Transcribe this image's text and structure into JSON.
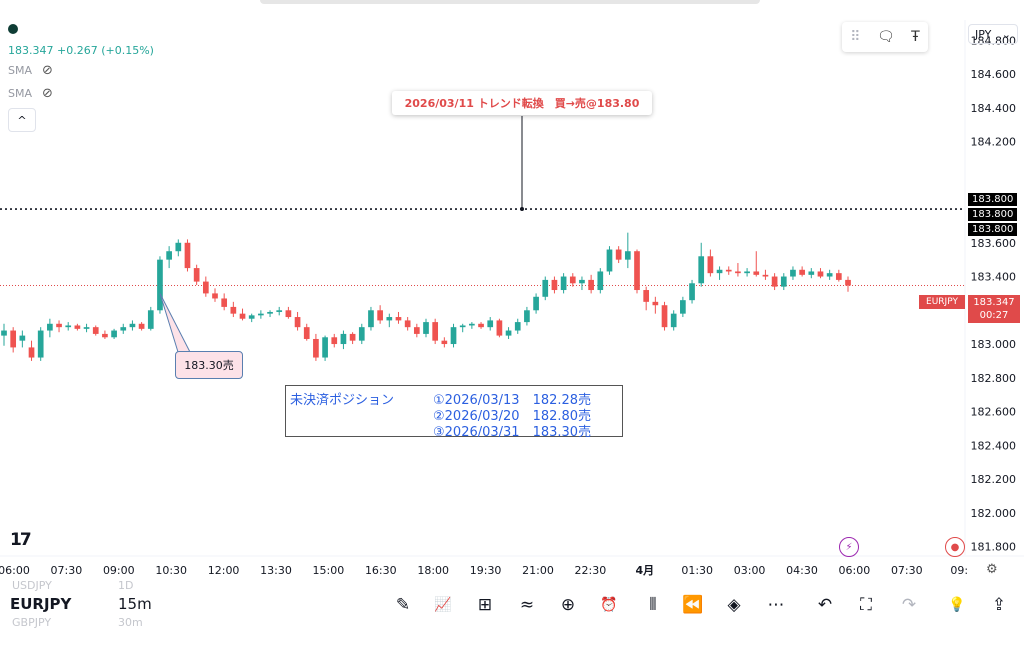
{
  "legend": {
    "price": "183.347 +0.267 (+0.15%)",
    "indicators": [
      {
        "name": "SMA",
        "icon": "eye-hidden-icon"
      },
      {
        "name": "SMA",
        "icon": "eye-hidden-icon"
      }
    ],
    "collapse_icon": "^"
  },
  "currency_selector": {
    "value": "JPY",
    "arrow": "⌄"
  },
  "price_tags": [
    "183.800",
    "183.800",
    "183.800"
  ],
  "current_price": {
    "symbol": "EURJPY",
    "value": "183.347",
    "countdown": "00:27"
  },
  "annotations": {
    "trend_change": "2026/03/11 トレンド転換　買→売@183.80",
    "sell_entry": "183.30売",
    "positions": {
      "title": "未決済ポジション",
      "lines": [
        "①2026/03/13　182.28売",
        "②2026/03/20　182.80売",
        "③2026/03/31　183.30売"
      ]
    }
  },
  "chart_data": {
    "type": "candlestick",
    "symbol": "EURJPY",
    "interval": "15m",
    "y_ticks": [
      "184.800",
      "184.600",
      "184.400",
      "184.200",
      "183.600",
      "183.400",
      "183.200",
      "183.000",
      "182.800",
      "182.600",
      "182.400",
      "182.200",
      "182.000",
      "181.800"
    ],
    "ylim": [
      181.75,
      184.92
    ],
    "x_ticks": [
      "06:00",
      "07:30",
      "09:00",
      "10:30",
      "12:00",
      "13:30",
      "15:00",
      "16:30",
      "18:00",
      "19:30",
      "21:00",
      "22:30",
      "4月",
      "01:30",
      "03:00",
      "04:30",
      "06:00",
      "07:30",
      "09:"
    ],
    "horizontal_line": 183.8,
    "current_price_line": 183.347,
    "ohlc": [
      [
        183.05,
        183.12,
        182.99,
        183.08
      ],
      [
        183.08,
        183.1,
        182.95,
        182.98
      ],
      [
        183.02,
        183.08,
        182.98,
        183.05
      ],
      [
        182.98,
        183.02,
        182.9,
        182.92
      ],
      [
        182.92,
        183.1,
        182.9,
        183.08
      ],
      [
        183.08,
        183.15,
        183.04,
        183.12
      ],
      [
        183.12,
        183.14,
        183.07,
        183.1
      ],
      [
        183.1,
        183.13,
        183.08,
        183.11
      ],
      [
        183.11,
        183.12,
        183.08,
        183.09
      ],
      [
        183.09,
        183.12,
        183.07,
        183.1
      ],
      [
        183.1,
        183.11,
        183.05,
        183.06
      ],
      [
        183.06,
        183.08,
        183.03,
        183.04
      ],
      [
        183.04,
        183.09,
        183.03,
        183.08
      ],
      [
        183.08,
        183.12,
        183.06,
        183.1
      ],
      [
        183.1,
        183.14,
        183.08,
        183.12
      ],
      [
        183.12,
        183.13,
        183.08,
        183.09
      ],
      [
        183.09,
        183.22,
        183.08,
        183.2
      ],
      [
        183.2,
        183.52,
        183.18,
        183.5
      ],
      [
        183.5,
        183.58,
        183.45,
        183.55
      ],
      [
        183.55,
        183.62,
        183.52,
        183.6
      ],
      [
        183.6,
        183.62,
        183.43,
        183.45
      ],
      [
        183.45,
        183.47,
        183.35,
        183.37
      ],
      [
        183.37,
        183.4,
        183.28,
        183.3
      ],
      [
        183.3,
        183.33,
        183.25,
        183.27
      ],
      [
        183.27,
        183.3,
        183.2,
        183.22
      ],
      [
        183.22,
        183.25,
        183.16,
        183.18
      ],
      [
        183.18,
        183.21,
        183.14,
        183.15
      ],
      [
        183.15,
        183.18,
        183.13,
        183.17
      ],
      [
        183.17,
        183.2,
        183.15,
        183.18
      ],
      [
        183.18,
        183.2,
        183.16,
        183.19
      ],
      [
        183.19,
        183.22,
        183.17,
        183.2
      ],
      [
        183.2,
        183.22,
        183.15,
        183.16
      ],
      [
        183.16,
        183.19,
        183.08,
        183.1
      ],
      [
        183.1,
        183.12,
        183.02,
        183.03
      ],
      [
        183.03,
        183.06,
        182.9,
        182.92
      ],
      [
        182.92,
        183.05,
        182.9,
        183.04
      ],
      [
        183.04,
        183.06,
        182.98,
        183.0
      ],
      [
        183.0,
        183.08,
        182.97,
        183.06
      ],
      [
        183.06,
        183.07,
        183.0,
        183.02
      ],
      [
        183.02,
        183.12,
        183.0,
        183.1
      ],
      [
        183.1,
        183.22,
        183.08,
        183.2
      ],
      [
        183.2,
        183.23,
        183.12,
        183.14
      ],
      [
        183.14,
        183.18,
        183.1,
        183.16
      ],
      [
        183.16,
        183.19,
        183.12,
        183.14
      ],
      [
        183.14,
        183.16,
        183.08,
        183.1
      ],
      [
        183.1,
        183.12,
        183.04,
        183.06
      ],
      [
        183.06,
        183.15,
        183.04,
        183.13
      ],
      [
        183.13,
        183.15,
        183.0,
        183.02
      ],
      [
        183.02,
        183.04,
        182.98,
        183.0
      ],
      [
        183.0,
        183.12,
        182.98,
        183.1
      ],
      [
        183.1,
        183.12,
        183.07,
        183.11
      ],
      [
        183.11,
        183.13,
        183.09,
        183.12
      ],
      [
        183.12,
        183.13,
        183.09,
        183.1
      ],
      [
        183.1,
        183.16,
        183.08,
        183.14
      ],
      [
        183.14,
        183.15,
        183.04,
        183.05
      ],
      [
        183.05,
        183.1,
        183.03,
        183.08
      ],
      [
        183.08,
        183.15,
        183.06,
        183.13
      ],
      [
        183.13,
        183.22,
        183.11,
        183.2
      ],
      [
        183.2,
        183.3,
        183.18,
        183.28
      ],
      [
        183.28,
        183.4,
        183.26,
        183.38
      ],
      [
        183.38,
        183.4,
        183.3,
        183.32
      ],
      [
        183.32,
        183.42,
        183.3,
        183.4
      ],
      [
        183.4,
        183.42,
        183.34,
        183.36
      ],
      [
        183.36,
        183.4,
        183.32,
        183.38
      ],
      [
        183.38,
        183.41,
        183.3,
        183.32
      ],
      [
        183.32,
        183.45,
        183.3,
        183.43
      ],
      [
        183.43,
        183.58,
        183.41,
        183.56
      ],
      [
        183.56,
        183.58,
        183.48,
        183.5
      ],
      [
        183.5,
        183.66,
        183.45,
        183.55
      ],
      [
        183.55,
        183.56,
        183.3,
        183.32
      ],
      [
        183.32,
        183.34,
        183.2,
        183.25
      ],
      [
        183.25,
        183.28,
        183.18,
        183.23
      ],
      [
        183.23,
        183.25,
        183.08,
        183.1
      ],
      [
        183.1,
        183.2,
        183.08,
        183.18
      ],
      [
        183.18,
        183.28,
        183.16,
        183.26
      ],
      [
        183.26,
        183.38,
        183.24,
        183.36
      ],
      [
        183.36,
        183.6,
        183.34,
        183.52
      ],
      [
        183.52,
        183.56,
        183.4,
        183.42
      ],
      [
        183.42,
        183.46,
        183.38,
        183.44
      ],
      [
        183.44,
        183.46,
        183.41,
        183.43
      ],
      [
        183.43,
        183.48,
        183.4,
        183.42
      ],
      [
        183.42,
        183.45,
        183.4,
        183.43
      ],
      [
        183.43,
        183.55,
        183.4,
        183.41
      ],
      [
        183.41,
        183.44,
        183.38,
        183.4
      ],
      [
        183.4,
        183.42,
        183.32,
        183.34
      ],
      [
        183.34,
        183.42,
        183.32,
        183.4
      ],
      [
        183.4,
        183.46,
        183.38,
        183.44
      ],
      [
        183.44,
        183.46,
        183.4,
        183.41
      ],
      [
        183.41,
        183.45,
        183.39,
        183.43
      ],
      [
        183.43,
        183.45,
        183.39,
        183.4
      ],
      [
        183.4,
        183.44,
        183.38,
        183.42
      ],
      [
        183.42,
        183.44,
        183.37,
        183.38
      ],
      [
        183.38,
        183.4,
        183.31,
        183.347
      ]
    ]
  },
  "time_axis_settings_icon": "gear-icon",
  "status_icons": {
    "lightning": "⚡",
    "record": "●"
  },
  "tradingview_logo": "17",
  "bottom_bar": {
    "symbol": "EURJPY",
    "interval": "15m",
    "ghost_above_symbol": "USDJPY",
    "ghost_above_interval": "1D",
    "ghost_below_symbol": "GBPJPY",
    "ghost_below_interval": "30m",
    "tools": [
      {
        "name": "pencil-icon",
        "glyph": "✎"
      },
      {
        "name": "indicators-icon",
        "glyph": "📈"
      },
      {
        "name": "templates-icon",
        "glyph": "⊞"
      },
      {
        "name": "compare-icon",
        "glyph": "≈"
      },
      {
        "name": "add-icon",
        "glyph": "⊕"
      },
      {
        "name": "alert-clock-icon",
        "glyph": "⏰"
      },
      {
        "name": "candles-icon",
        "glyph": "⫴"
      },
      {
        "name": "replay-icon",
        "glyph": "⏪"
      },
      {
        "name": "layers-icon",
        "glyph": "◈"
      },
      {
        "name": "more-icon",
        "glyph": "⋯"
      },
      {
        "name": "undo-icon",
        "glyph": "↶"
      },
      {
        "name": "fullscreen-icon",
        "glyph": "⛶"
      },
      {
        "name": "redo-icon",
        "glyph": "↷"
      },
      {
        "name": "ideas-icon",
        "glyph": "💡"
      },
      {
        "name": "share-icon",
        "glyph": "⇪"
      }
    ]
  },
  "top_tools": [
    {
      "name": "drag-handle-icon",
      "glyph": "⠿"
    },
    {
      "name": "comment-icon",
      "glyph": "🗨"
    },
    {
      "name": "text-tool-icon",
      "glyph": "Ŧ"
    }
  ]
}
